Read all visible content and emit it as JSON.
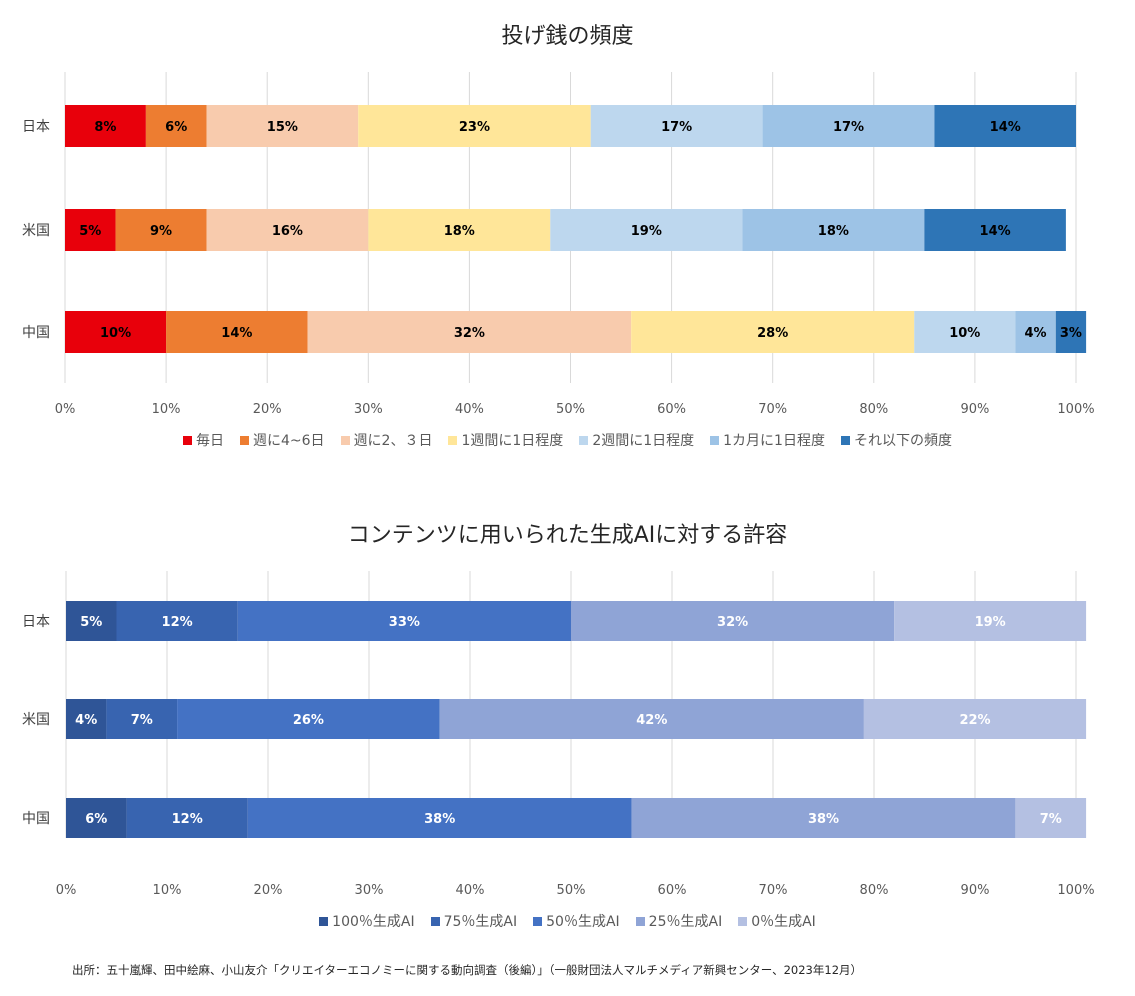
{
  "source": "出所：五十嵐輝、田中絵麻、小山友介「クリエイターエコノミーに関する動向調査（後編）」（一般財団法人マルチメディア新興センター、2023年12月）",
  "chart_data": [
    {
      "type": "bar",
      "orientation": "horizontal",
      "stacked": "percent",
      "title": "投げ銭の頻度",
      "categories": [
        "日本",
        "米国",
        "中国"
      ],
      "x_ticks": [
        "0%",
        "10%",
        "20%",
        "30%",
        "40%",
        "50%",
        "60%",
        "70%",
        "80%",
        "90%",
        "100%"
      ],
      "xlim": [
        0,
        100
      ],
      "grid": "vertical",
      "legend_position": "bottom",
      "series": [
        {
          "name": "毎日",
          "color": "#e8000b",
          "values": [
            8,
            5,
            10
          ],
          "labels": [
            "8%",
            "5%",
            "10%"
          ]
        },
        {
          "name": "週に4~6日",
          "color": "#ed7d31",
          "values": [
            6,
            9,
            14
          ],
          "labels": [
            "6%",
            "9%",
            "14%"
          ]
        },
        {
          "name": "週に2、３日",
          "color": "#f8cbad",
          "values": [
            15,
            16,
            32
          ],
          "labels": [
            "15%",
            "16%",
            "32%"
          ]
        },
        {
          "name": "1週間に1日程度",
          "color": "#ffe699",
          "values": [
            23,
            18,
            28
          ],
          "labels": [
            "23%",
            "18%",
            "28%"
          ]
        },
        {
          "name": "2週間に1日程度",
          "color": "#bdd7ee",
          "values": [
            17,
            19,
            10
          ],
          "labels": [
            "17%",
            "19%",
            "10%"
          ]
        },
        {
          "name": "1カ月に1日程度",
          "color": "#9dc3e6",
          "values": [
            17,
            18,
            4
          ],
          "labels": [
            "17%",
            "18%",
            "4%"
          ]
        },
        {
          "name": "それ以下の頻度",
          "color": "#2e75b6",
          "values": [
            14,
            14,
            3
          ],
          "labels": [
            "14%",
            "14%",
            "3%"
          ]
        }
      ]
    },
    {
      "type": "bar",
      "orientation": "horizontal",
      "stacked": "percent",
      "title": "コンテンツに用いられた生成AIに対する許容",
      "categories": [
        "日本",
        "米国",
        "中国"
      ],
      "x_ticks": [
        "0%",
        "10%",
        "20%",
        "30%",
        "40%",
        "50%",
        "60%",
        "70%",
        "80%",
        "90%",
        "100%"
      ],
      "xlim": [
        0,
        100
      ],
      "grid": "vertical",
      "legend_position": "bottom",
      "series": [
        {
          "name": "100％生成AI",
          "color": "#2f5597",
          "values": [
            5,
            4,
            6
          ],
          "labels": [
            "5%",
            "4%",
            "6%"
          ]
        },
        {
          "name": "75％生成AI",
          "color": "#3864b0",
          "values": [
            12,
            7,
            12
          ],
          "labels": [
            "12%",
            "7%",
            "12%"
          ]
        },
        {
          "name": "50％生成AI",
          "color": "#4472c4",
          "values": [
            33,
            26,
            38
          ],
          "labels": [
            "33%",
            "26%",
            "38%"
          ]
        },
        {
          "name": "25％生成AI",
          "color": "#8fa4d6",
          "values": [
            32,
            42,
            38
          ],
          "labels": [
            "32%",
            "42%",
            "38%"
          ]
        },
        {
          "name": "0％生成AI",
          "color": "#b4c0e2",
          "values": [
            19,
            22,
            7
          ],
          "labels": [
            "19%",
            "22%",
            "7%"
          ]
        }
      ]
    }
  ]
}
